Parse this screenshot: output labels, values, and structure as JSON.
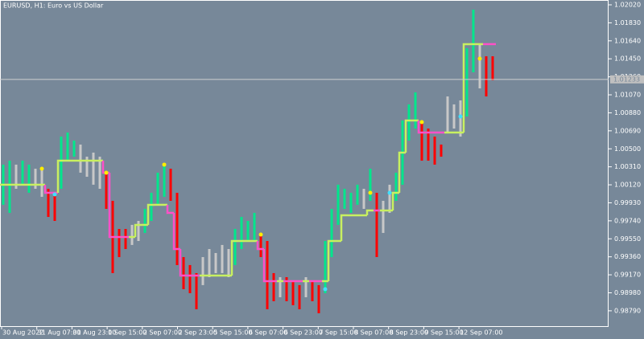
{
  "chart_data": {
    "type": "ohlc",
    "title": "EURUSD, H1:  Euro vs US Dollar",
    "ylim": [
      0.98628,
      1.02071
    ],
    "yticks": [
      {
        "value": 1.0202,
        "label": "1.02020"
      },
      {
        "value": 1.0183,
        "label": "1.01830"
      },
      {
        "value": 1.0164,
        "label": "1.01640"
      },
      {
        "value": 1.0145,
        "label": "1.01450"
      },
      {
        "value": 1.0126,
        "label": "1.01260"
      },
      {
        "value": 1.0107,
        "label": "1.01070"
      },
      {
        "value": 1.0088,
        "label": "1.00880"
      },
      {
        "value": 1.0069,
        "label": "1.00690"
      },
      {
        "value": 1.005,
        "label": "1.00500"
      },
      {
        "value": 1.0031,
        "label": "1.00310"
      },
      {
        "value": 1.0012,
        "label": "1.00120"
      },
      {
        "value": 0.9993,
        "label": "0.99930"
      },
      {
        "value": 0.9974,
        "label": "0.99740"
      },
      {
        "value": 0.9955,
        "label": "0.99550"
      },
      {
        "value": 0.9936,
        "label": "0.99360"
      },
      {
        "value": 0.9917,
        "label": "0.99170"
      },
      {
        "value": 0.9898,
        "label": "0.98980"
      },
      {
        "value": 0.9879,
        "label": "0.98790"
      }
    ],
    "x_labels": [
      "30 Aug 2022",
      "31 Aug 07:00",
      "31 Aug 23:00",
      "1 Sep 15:00",
      "2 Sep 07:00",
      "2 Sep 23:00",
      "5 Sep 15:00",
      "6 Sep 07:00",
      "6 Sep 23:00",
      "7 Sep 15:00",
      "8 Sep 07:00",
      "8 Sep 23:00",
      "9 Sep 15:00",
      "12 Sep 07:00"
    ],
    "bar_colors": [
      "#00e68c",
      "#c8c8c8",
      "#ff0000"
    ],
    "trend_colors": [
      "#c8f060",
      "#ff50c8"
    ],
    "high": [
      1.00333,
      1.00375,
      1.00333,
      1.00375,
      1.00333,
      1.0029,
      1.00273,
      1.00078,
      1.00036,
      1.00629,
      1.00672,
      1.00587,
      1.00545,
      1.00417,
      1.0046,
      1.00417,
      1.00248,
      0.99951,
      0.99654,
      0.99654,
      0.99697,
      0.99739,
      0.99866,
      1.00036,
      1.00248,
      1.00333,
      1.0029,
      1.00036,
      0.99357,
      0.99273,
      0.99188,
      0.99357,
      0.99442,
      0.994,
      0.99485,
      0.99442,
      0.99654,
      0.99781,
      0.99739,
      0.99824,
      0.99612,
      0.99527,
      0.99188,
      0.99145,
      0.99145,
      0.99103,
      0.99061,
      0.99145,
      0.99103,
      0.99061,
      0.99527,
      0.99866,
      1.00121,
      1.00078,
      1.00036,
      1.00121,
      1.00078,
      1.0029,
      1.00036,
      0.99951,
      1.00121,
      1.00248,
      1.00799,
      1.00969,
      1.01096,
      1.00799,
      1.00714,
      1.00629,
      1.00545,
      1.01053,
      1.00969,
      1.01011,
      1.01562,
      1.01969,
      1.01605,
      1.01477,
      1.01477
    ],
    "low": [
      0.99909,
      0.99824,
      1.00078,
      1.00121,
      1.00036,
      1.00078,
      0.99993,
      0.99781,
      0.99739,
      1.00078,
      1.00375,
      1.00417,
      1.00248,
      1.00205,
      1.00121,
      1.00078,
      0.99866,
      0.99188,
      0.99357,
      0.99442,
      0.99485,
      0.99527,
      0.99612,
      0.99739,
      0.99909,
      0.99993,
      0.99951,
      0.99273,
      0.99018,
      0.98976,
      0.98806,
      0.99061,
      0.99145,
      0.99188,
      0.99188,
      0.99145,
      0.99273,
      0.99442,
      0.99527,
      0.99527,
      0.99357,
      0.98806,
      0.98891,
      0.98933,
      0.98891,
      0.98849,
      0.98806,
      0.98933,
      0.98891,
      0.98764,
      0.98976,
      0.99357,
      0.99697,
      0.99866,
      0.99824,
      0.99909,
      0.99866,
      0.99951,
      0.99357,
      0.99612,
      0.99824,
      0.99951,
      1.00121,
      1.00587,
      1.00714,
      1.00375,
      1.00375,
      1.00333,
      1.00417,
      1.00672,
      1.00714,
      1.00629,
      1.00841,
      1.01308,
      1.01138,
      1.01053,
      1.01223
    ],
    "state": [
      0,
      0,
      1,
      0,
      0,
      1,
      1,
      2,
      2,
      0,
      0,
      0,
      1,
      1,
      1,
      1,
      2,
      2,
      2,
      2,
      1,
      1,
      0,
      0,
      0,
      0,
      2,
      2,
      2,
      2,
      2,
      1,
      1,
      1,
      1,
      1,
      0,
      0,
      0,
      0,
      2,
      2,
      2,
      1,
      2,
      2,
      2,
      1,
      2,
      2,
      0,
      0,
      0,
      0,
      0,
      0,
      1,
      0,
      2,
      1,
      1,
      0,
      0,
      0,
      0,
      2,
      2,
      2,
      2,
      1,
      1,
      1,
      0,
      0,
      1,
      2,
      2
    ],
    "trend": [
      1.00121,
      1.00121,
      1.00121,
      1.00121,
      1.00121,
      1.00121,
      1.00121,
      1.00036,
      1.00036,
      1.00375,
      1.00375,
      1.00375,
      1.00375,
      1.00375,
      1.00375,
      1.00375,
      1.00248,
      0.99569,
      0.99569,
      0.99569,
      0.99569,
      0.99697,
      0.99697,
      0.99909,
      0.99909,
      0.99909,
      0.99824,
      0.99442,
      0.99162,
      0.99162,
      0.99162,
      0.99162,
      0.99162,
      0.99162,
      0.99162,
      0.99162,
      0.99527,
      0.99527,
      0.99527,
      0.99527,
      0.99442,
      0.99103,
      0.99103,
      0.99103,
      0.99103,
      0.99103,
      0.99103,
      0.99103,
      0.99103,
      0.99103,
      0.99103,
      0.99527,
      0.99527,
      0.99798,
      0.99798,
      0.99798,
      0.99798,
      0.99849,
      0.99849,
      0.99849,
      0.99849,
      1.00036,
      1.0046,
      1.00799,
      1.00799,
      1.00672,
      1.00672,
      1.00672,
      1.00672,
      1.00672,
      1.00672,
      1.00672,
      1.01605,
      1.01605,
      1.01605,
      1.01605,
      1.01605
    ],
    "signals": [
      {
        "index": 6,
        "value": 1.0029,
        "color": "#ffee00"
      },
      {
        "index": 16,
        "value": 1.00248,
        "color": "#ffee00"
      },
      {
        "index": 25,
        "value": 1.00333,
        "color": "#ffee00"
      },
      {
        "index": 40,
        "value": 0.99595,
        "color": "#ffee00"
      },
      {
        "index": 57,
        "value": 1.00036,
        "color": "#ffee00"
      },
      {
        "index": 65,
        "value": 1.00782,
        "color": "#ffee00"
      },
      {
        "index": 74,
        "value": 1.01452,
        "color": "#ffee00"
      },
      {
        "index": 8,
        "value": 1.00019,
        "color": "#40e0ff"
      },
      {
        "index": 50,
        "value": 0.99018,
        "color": "#40e0ff"
      },
      {
        "index": 60,
        "value": 1.00036,
        "color": "#40e0ff"
      },
      {
        "index": 71,
        "value": 1.00841,
        "color": "#40e0ff"
      }
    ],
    "current_price": {
      "value": 1.01233,
      "label": "1.01233"
    }
  }
}
